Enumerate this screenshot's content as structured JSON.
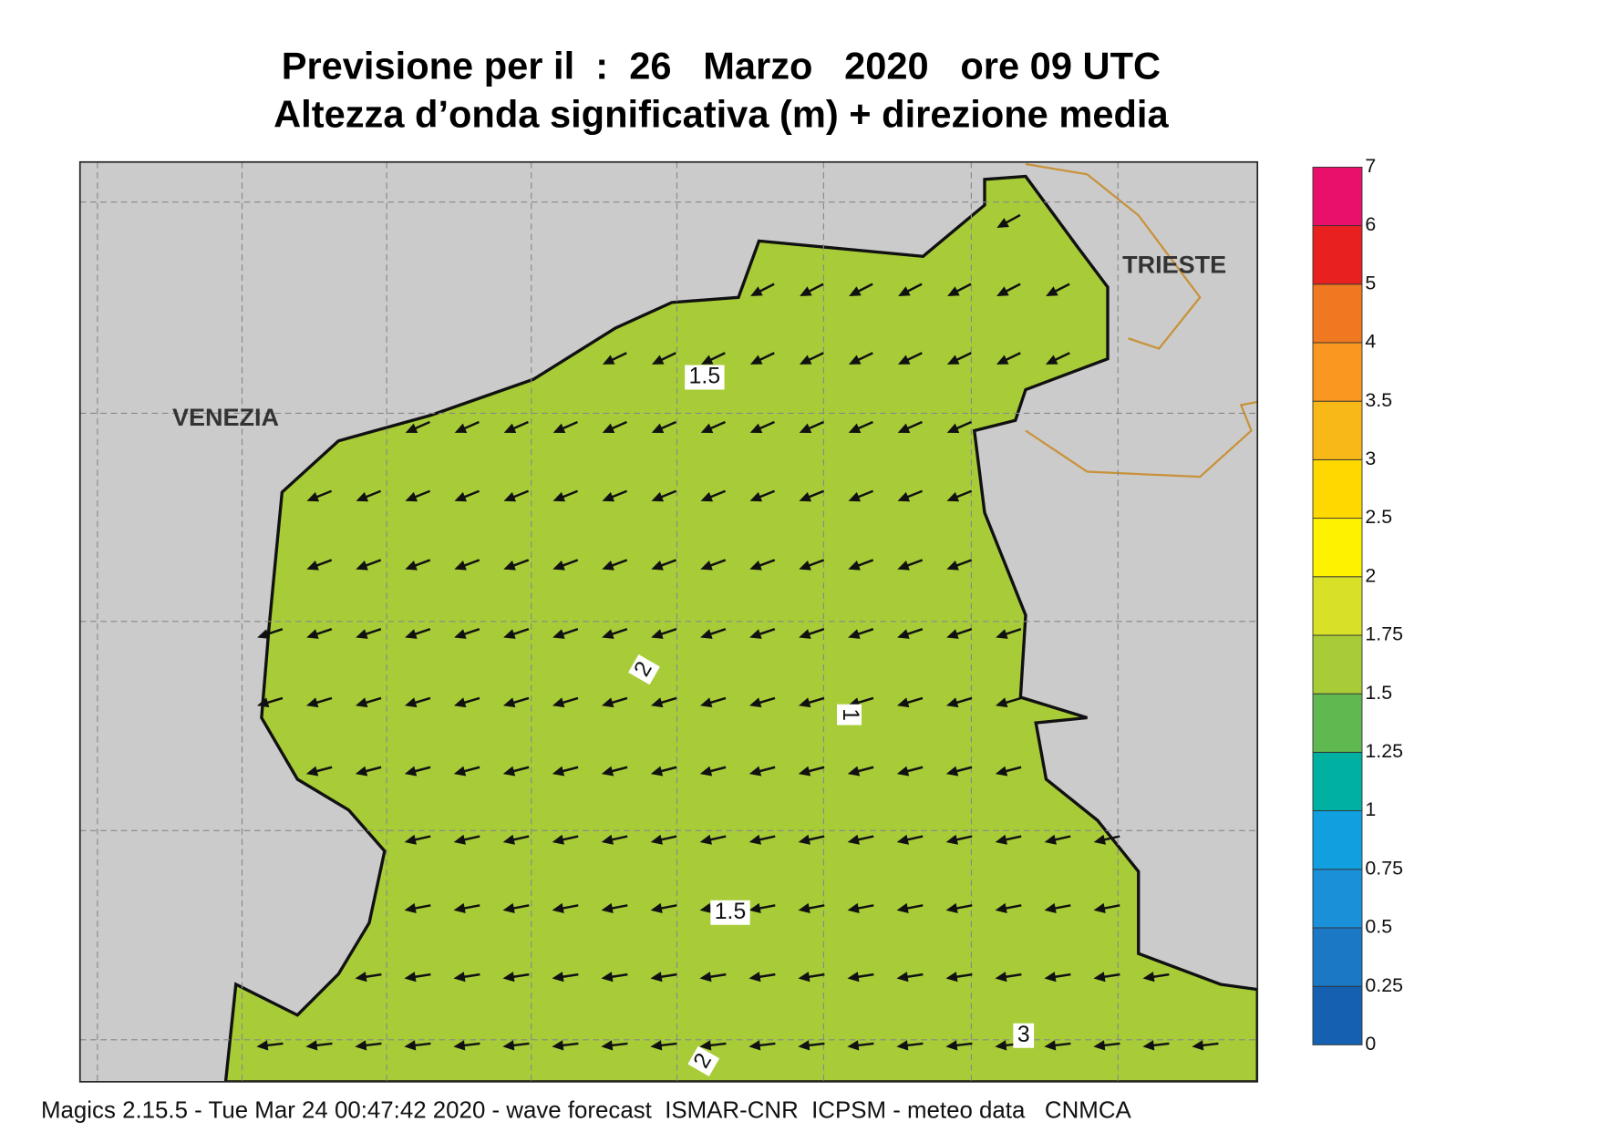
{
  "header": {
    "title": "Previsione per il  :  26   Marzo   2020   ore 09 UTC",
    "subtitle": "Altezza d’onda significativa (m) + direzione media"
  },
  "map": {
    "places": [
      "VENEZIA",
      "TRIESTE"
    ],
    "contour_labels": [
      "1.5",
      "2",
      "1",
      "1.5",
      "3",
      "2"
    ]
  },
  "legend": {
    "levels": [
      0,
      0.25,
      0.5,
      0.75,
      1,
      1.25,
      1.5,
      1.75,
      2,
      2.5,
      3,
      3.5,
      4,
      5,
      6,
      7
    ],
    "colors": [
      "#1560b0",
      "#1a78c4",
      "#1a90d8",
      "#10a0e0",
      "#00b0a0",
      "#60b850",
      "#a8cc38",
      "#d8e028",
      "#fff200",
      "#ffd800",
      "#f8b818",
      "#f89820",
      "#f07820",
      "#e82020",
      "#e8106a"
    ]
  },
  "footer": "Magics 2.15.5 - Tue Mar 24 00:47:42 2020 - wave forecast  ISMAR-CNR  ICPSM - meteo data   CNMCA"
}
